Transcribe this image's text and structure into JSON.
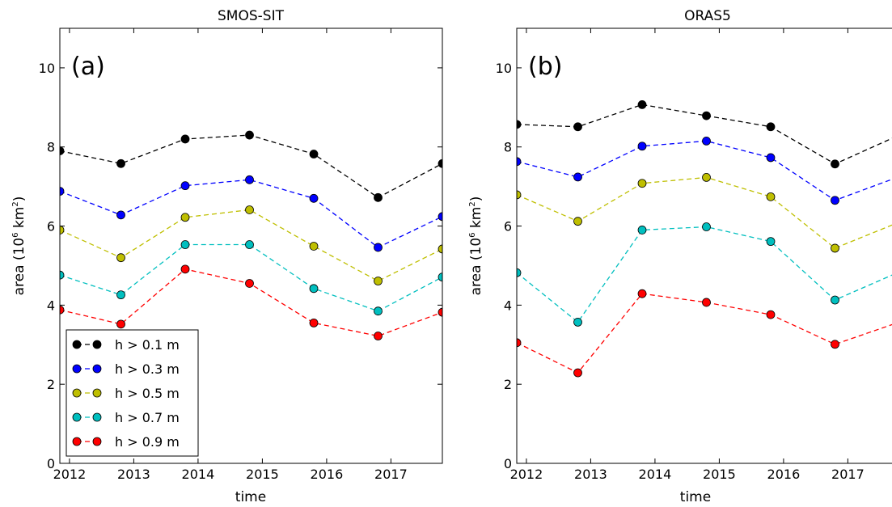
{
  "chart_data": [
    {
      "type": "line",
      "title": "SMOS-SIT",
      "panel_label": "(a)",
      "xlabel": "time",
      "ylabel": "area (10",
      "ylabel_sup": "6",
      "ylabel_unit": " km",
      "ylabel_unit_sup": "2",
      "ylabel_end": ")",
      "xlim": [
        2011.85,
        2017.8
      ],
      "ylim": [
        0,
        11
      ],
      "xticks": [
        "2012",
        "2013",
        "2014",
        "2015",
        "2016",
        "2017"
      ],
      "yticks": [
        "0",
        "2",
        "4",
        "6",
        "8",
        "10"
      ],
      "x": [
        2011.85,
        2012.8,
        2013.8,
        2014.8,
        2015.8,
        2016.8,
        2017.8
      ],
      "legend_position": "lower-left",
      "series": [
        {
          "name": "h > 0.1 m",
          "color": "#000000",
          "values": [
            7.9,
            7.58,
            8.2,
            8.3,
            7.82,
            6.72,
            7.58
          ]
        },
        {
          "name": "h > 0.3 m",
          "color": "#0000ff",
          "values": [
            6.88,
            6.28,
            7.02,
            7.17,
            6.7,
            5.46,
            6.24
          ]
        },
        {
          "name": "h > 0.5 m",
          "color": "#bfbf00",
          "values": [
            5.9,
            5.2,
            6.22,
            6.41,
            5.49,
            4.61,
            5.42
          ]
        },
        {
          "name": "h > 0.7 m",
          "color": "#00bfbf",
          "values": [
            4.76,
            4.26,
            5.53,
            5.53,
            4.42,
            3.85,
            4.71
          ]
        },
        {
          "name": "h > 0.9 m",
          "color": "#ff0000",
          "values": [
            3.88,
            3.52,
            4.91,
            4.55,
            3.55,
            3.22,
            3.82
          ]
        }
      ]
    },
    {
      "type": "line",
      "title": "ORAS5",
      "panel_label": "(b)",
      "xlabel": "time",
      "ylabel": "area (10",
      "ylabel_sup": "6",
      "ylabel_unit": " km",
      "ylabel_unit_sup": "2",
      "ylabel_end": ")",
      "xlim": [
        2011.85,
        2017.8
      ],
      "ylim": [
        0,
        11
      ],
      "xticks": [
        "2012",
        "2013",
        "2014",
        "2015",
        "2016",
        "2017"
      ],
      "yticks": [
        "0",
        "2",
        "4",
        "6",
        "8",
        "10"
      ],
      "x": [
        2011.85,
        2012.8,
        2013.8,
        2014.8,
        2015.8,
        2016.8,
        2017.8
      ],
      "series": [
        {
          "name": "h > 0.1 m",
          "color": "#000000",
          "values": [
            8.57,
            8.51,
            9.07,
            8.79,
            8.51,
            7.57,
            8.3
          ]
        },
        {
          "name": "h > 0.3 m",
          "color": "#0000ff",
          "values": [
            7.63,
            7.24,
            8.02,
            8.15,
            7.73,
            6.65,
            7.25
          ]
        },
        {
          "name": "h > 0.5 m",
          "color": "#bfbf00",
          "values": [
            6.79,
            6.12,
            7.08,
            7.23,
            6.74,
            5.44,
            6.1
          ]
        },
        {
          "name": "h > 0.7 m",
          "color": "#00bfbf",
          "values": [
            4.82,
            3.57,
            5.9,
            5.98,
            5.61,
            4.13,
            4.84
          ]
        },
        {
          "name": "h > 0.9 m",
          "color": "#ff0000",
          "values": [
            3.05,
            2.29,
            4.29,
            4.07,
            3.76,
            3.01,
            3.57
          ]
        }
      ]
    }
  ]
}
